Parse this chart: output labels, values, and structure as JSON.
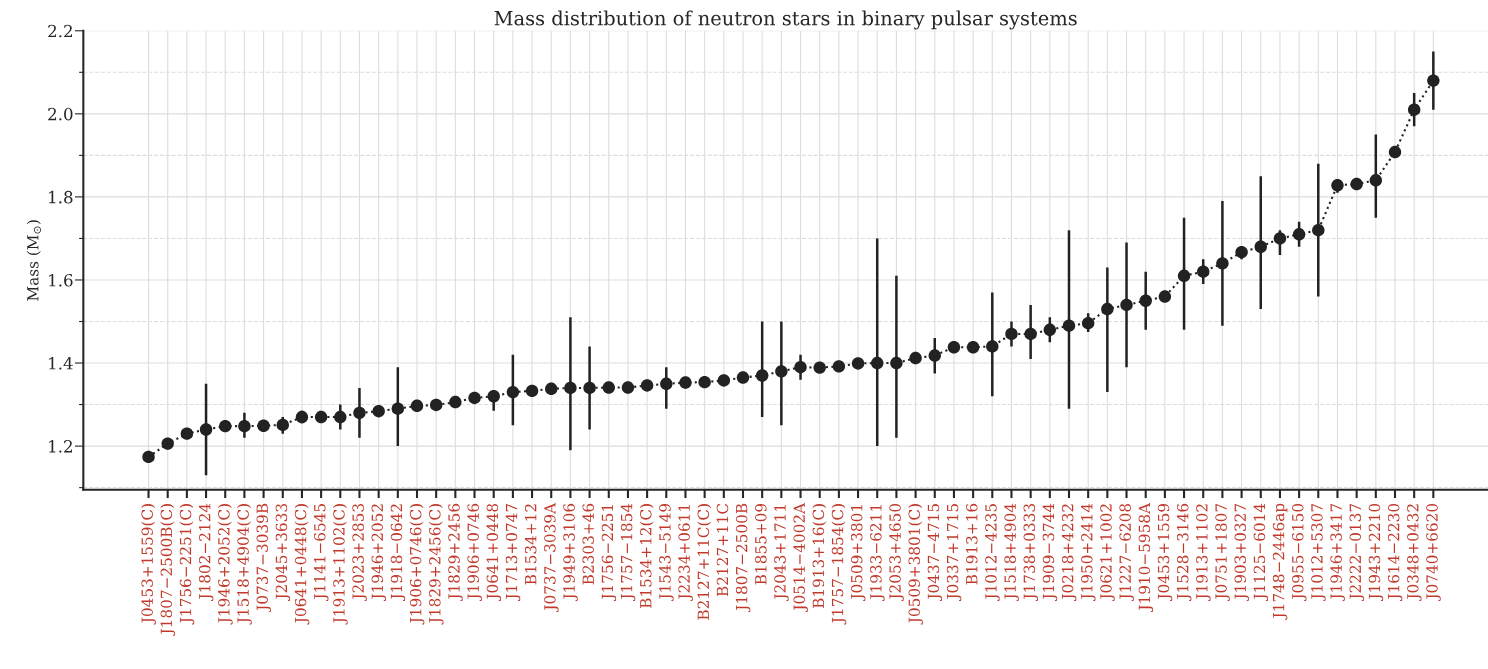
{
  "chart_data": {
    "type": "line",
    "title": "Mass distribution of neutron stars in binary pulsar systems",
    "ylabel": "Mass (M$_{⊙}$)",
    "categories": [
      "J0453+1559(C)",
      "J1807−2500B(C)",
      "J1756−2251(C)",
      "J1802−2124",
      "J1946+2052(C)",
      "J1518+4904(C)",
      "J0737−3039B",
      "J2045+3633",
      "J0641+0448(C)",
      "J1141−6545",
      "J1913+1102(C)",
      "J2023+2853",
      "J1946+2052",
      "J1918−0642",
      "J1906+0746(C)",
      "J1829+2456(C)",
      "J1829+2456",
      "J1906+0746",
      "J0641+0448",
      "J1713+0747",
      "B1534+12",
      "J0737−3039A",
      "J1949+3106",
      "B2303+46",
      "J1756−2251",
      "J1757−1854",
      "B1534+12(C)",
      "J1543−5149",
      "J2234+0611",
      "B2127+11C(C)",
      "B2127+11C",
      "J1807−2500B",
      "B1855+09",
      "J2043+1711",
      "J0514−4002A",
      "B1913+16(C)",
      "J1757−1854(C)",
      "J0509+3801",
      "J1933−6211",
      "J2053+4650",
      "J0509+3801(C)",
      "J0437−4715",
      "J0337+1715",
      "B1913+16",
      "J1012−4235",
      "J1518+4904",
      "J1738+0333",
      "J1909−3744",
      "J0218+4232",
      "J1950+2414",
      "J0621+1002",
      "J1227−6208",
      "J1910−5958A",
      "J0453+1559",
      "J1528−3146",
      "J1913+1102",
      "J0751+1807",
      "J1903+0327",
      "J1125−6014",
      "J1748−2446ap",
      "J0955−6150",
      "J1012+5307",
      "J1946+3417",
      "J2222−0137",
      "J1943+2210",
      "J1614−2230",
      "J0348+0432",
      "J0740+6620"
    ],
    "series": [
      {
        "color": "#222222",
        "values": [
          1.174,
          1.206,
          1.23,
          1.24,
          1.248,
          1.248,
          1.249,
          1.251,
          1.27,
          1.27,
          1.27,
          1.28,
          1.284,
          1.29,
          1.297,
          1.299,
          1.306,
          1.316,
          1.32,
          1.33,
          1.333,
          1.338,
          1.34,
          1.34,
          1.341,
          1.341,
          1.346,
          1.35,
          1.353,
          1.354,
          1.358,
          1.365,
          1.37,
          1.38,
          1.39,
          1.389,
          1.392,
          1.399,
          1.4,
          1.4,
          1.412,
          1.418,
          1.438,
          1.438,
          1.44,
          1.47,
          1.47,
          1.48,
          1.49,
          1.496,
          1.53,
          1.54,
          1.55,
          1.56,
          1.61,
          1.62,
          1.64,
          1.667,
          1.68,
          1.7,
          1.71,
          1.72,
          1.828,
          1.831,
          1.84,
          1.908,
          2.01,
          2.08
        ],
        "errors": [
          null,
          null,
          null,
          [
            1.13,
            1.35
          ],
          null,
          [
            1.22,
            1.28
          ],
          null,
          [
            1.23,
            1.27
          ],
          [
            1.255,
            1.285
          ],
          null,
          [
            1.24,
            1.3
          ],
          [
            1.22,
            1.34
          ],
          null,
          [
            1.2,
            1.39
          ],
          null,
          null,
          null,
          null,
          [
            1.285,
            1.335
          ],
          [
            1.25,
            1.42
          ],
          null,
          null,
          [
            1.19,
            1.51
          ],
          [
            1.24,
            1.44
          ],
          null,
          null,
          null,
          [
            1.29,
            1.39
          ],
          null,
          null,
          null,
          null,
          [
            1.27,
            1.5
          ],
          [
            1.25,
            1.5
          ],
          [
            1.36,
            1.42
          ],
          null,
          null,
          null,
          [
            1.2,
            1.7
          ],
          [
            1.22,
            1.61
          ],
          null,
          [
            1.375,
            1.46
          ],
          null,
          null,
          [
            1.32,
            1.57
          ],
          [
            1.44,
            1.5
          ],
          [
            1.41,
            1.54
          ],
          [
            1.45,
            1.51
          ],
          [
            1.29,
            1.72
          ],
          [
            1.475,
            1.52
          ],
          [
            1.33,
            1.63
          ],
          [
            1.39,
            1.69
          ],
          [
            1.48,
            1.62
          ],
          null,
          [
            1.48,
            1.75
          ],
          [
            1.59,
            1.65
          ],
          [
            1.49,
            1.79
          ],
          [
            1.65,
            1.68
          ],
          [
            1.53,
            1.85
          ],
          [
            1.66,
            1.72
          ],
          [
            1.68,
            1.74
          ],
          [
            1.56,
            1.88
          ],
          [
            1.81,
            1.84
          ],
          null,
          [
            1.75,
            1.95
          ],
          null,
          [
            1.97,
            2.05
          ],
          [
            2.01,
            2.15
          ]
        ]
      }
    ],
    "ylim": [
      1.095,
      2.2
    ],
    "yticks": [
      {
        "value": 1.1,
        "label": null
      },
      1.2,
      {
        "value": 1.3,
        "label": null
      },
      1.4,
      {
        "value": 1.5,
        "label": null
      },
      1.6,
      {
        "value": 1.7,
        "label": null
      },
      1.8,
      {
        "value": 1.9,
        "label": null
      },
      {
        "value": 2.0,
        "label": "2.0"
      },
      {
        "value": 2.1,
        "label": null
      },
      2.2
    ],
    "grid": true,
    "marker": "circle",
    "line_style": "dotted"
  }
}
